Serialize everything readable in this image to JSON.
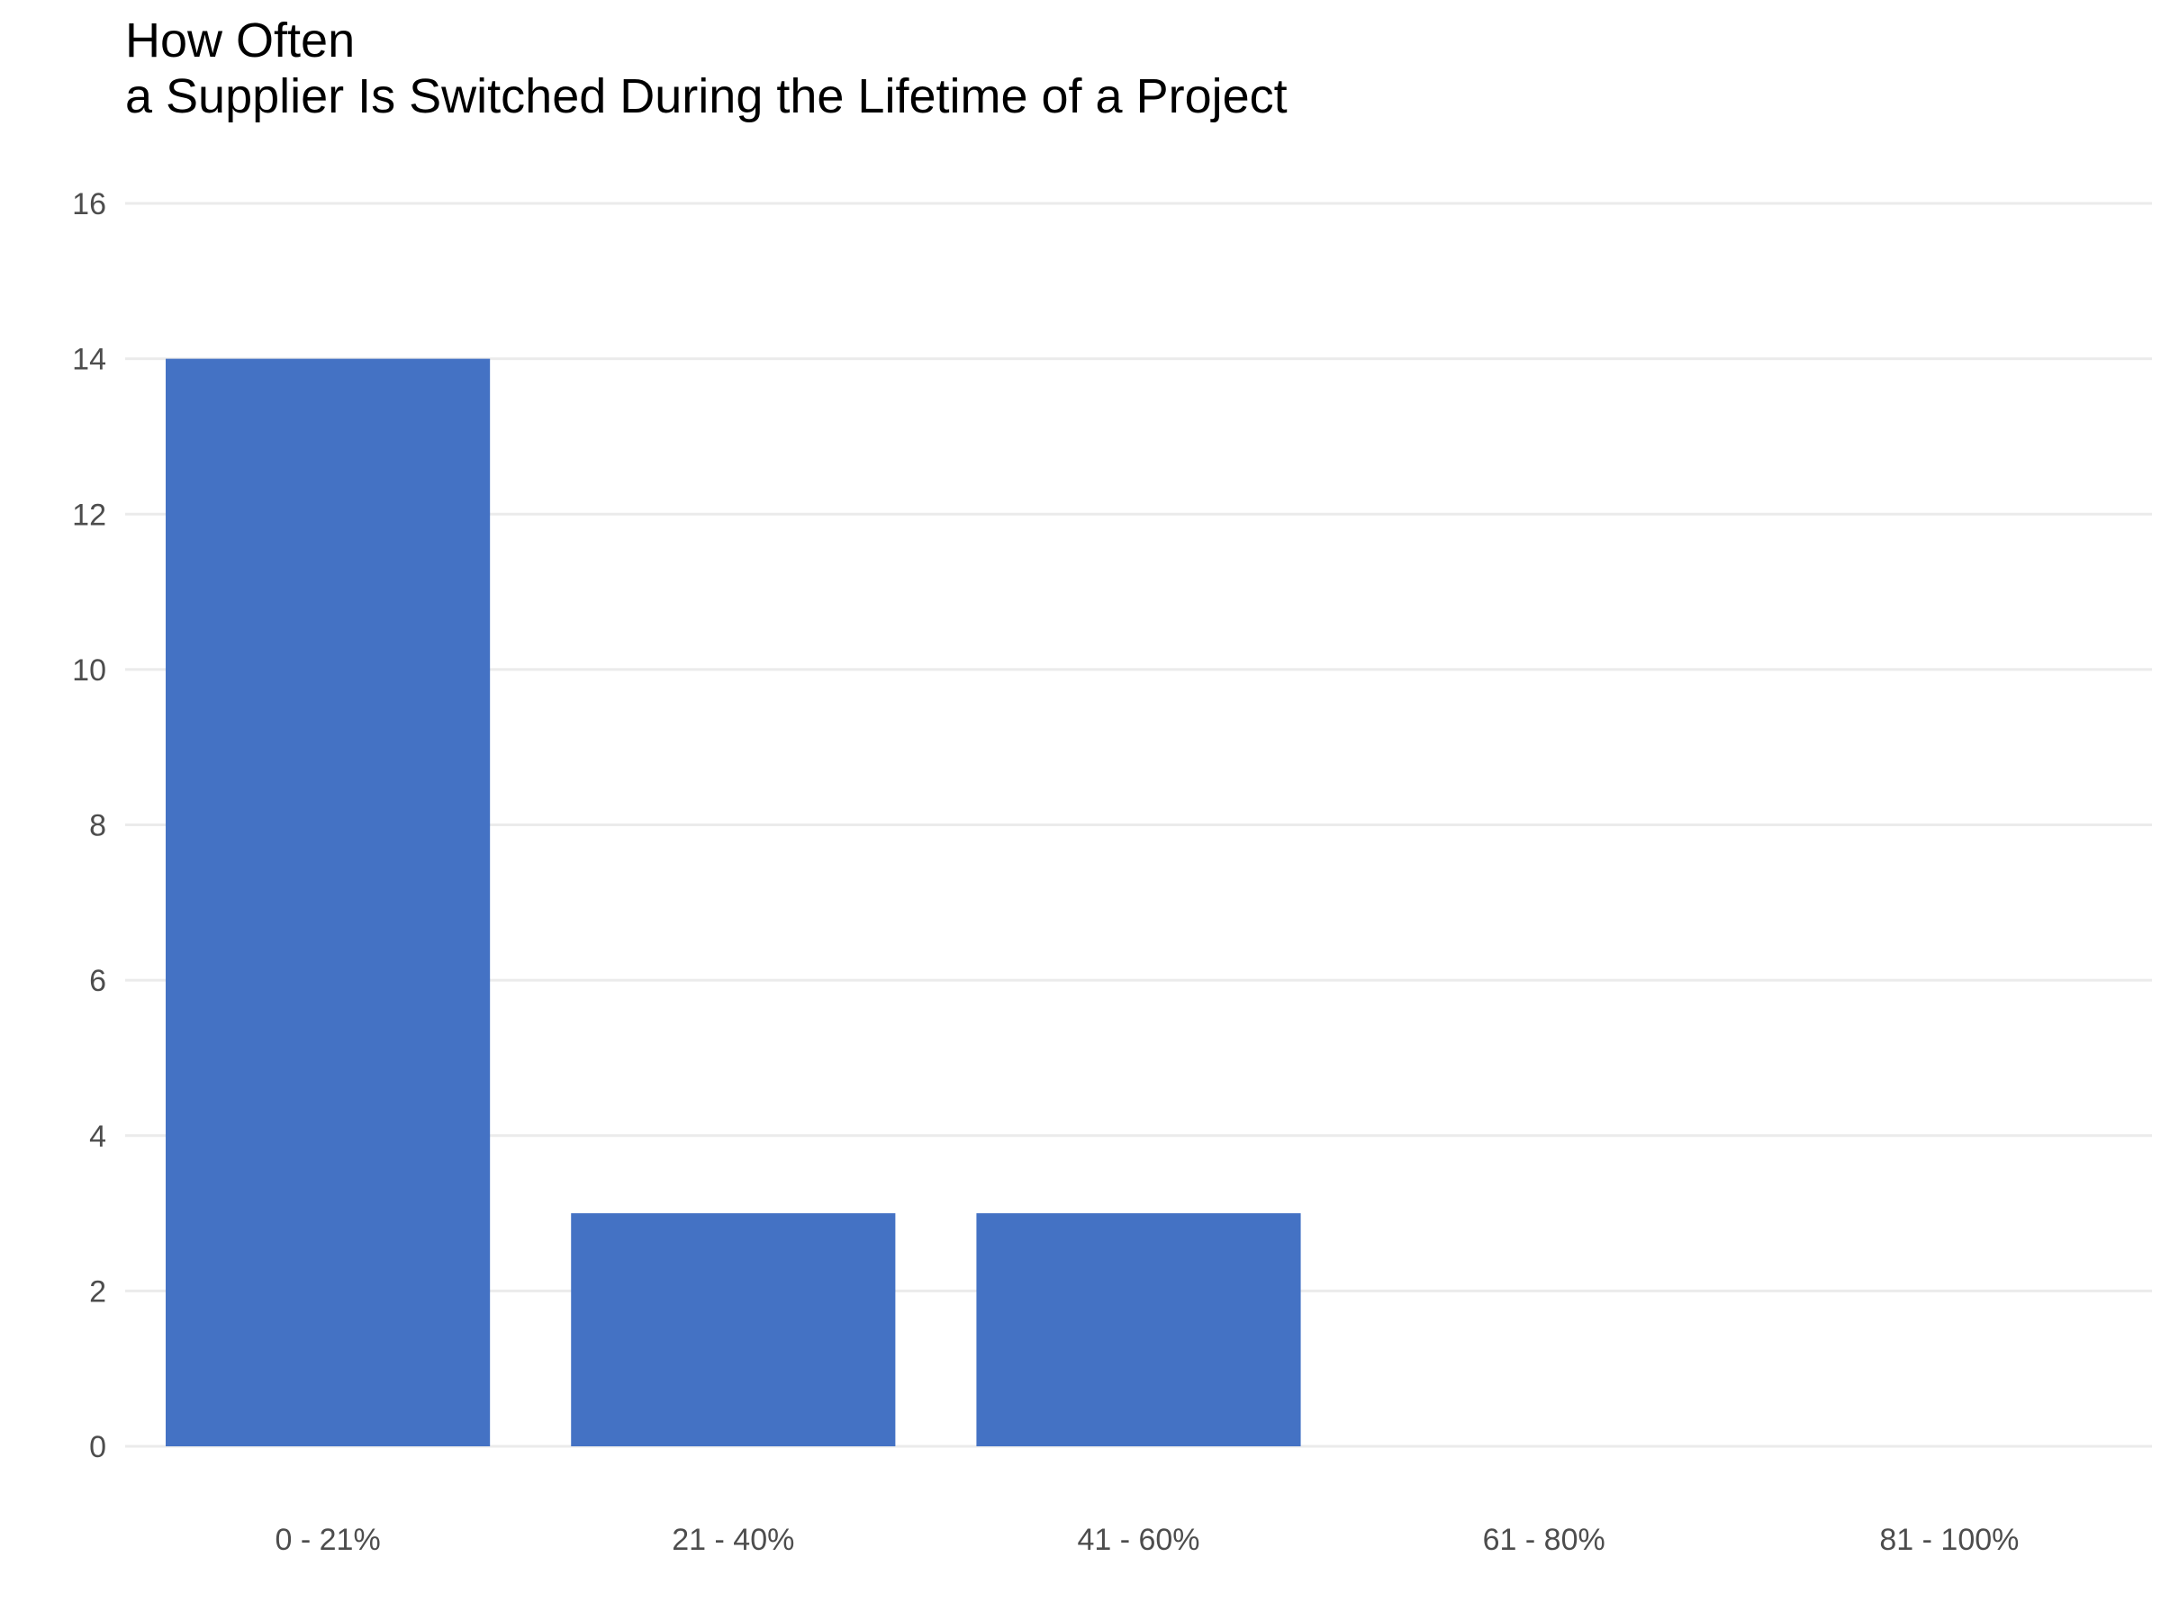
{
  "chart_data": {
    "type": "bar",
    "title": "How Often",
    "subtitle": "a Supplier Is Switched During the Lifetime of a Project",
    "xlabel": "",
    "ylabel": "",
    "categories": [
      "0 - 21%",
      "21 - 40%",
      "41 - 60%",
      "61 - 80%",
      "81 - 100%"
    ],
    "values": [
      14,
      3,
      3,
      0,
      0
    ],
    "ylim": [
      0,
      16
    ],
    "yticks": [
      0,
      2,
      4,
      6,
      8,
      10,
      12,
      14,
      16
    ],
    "grid": true,
    "legend": "none",
    "colors": {
      "bar": "#4472C4",
      "grid": "#EBEBEB",
      "tick_label": "#4D4D4D",
      "title": "#000000"
    }
  }
}
